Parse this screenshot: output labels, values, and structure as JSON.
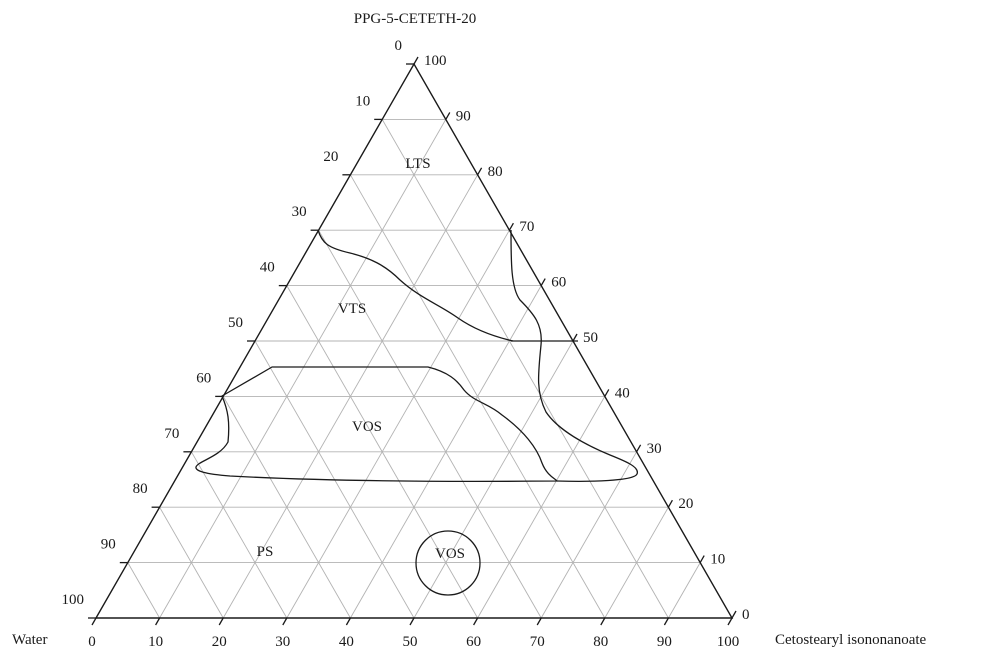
{
  "vertices": {
    "top": "PPG-5-CETETH-20",
    "left": "Water",
    "right": "Cetostearyl isononanoate"
  },
  "ticks": {
    "bottom": [
      "0",
      "10",
      "20",
      "30",
      "40",
      "50",
      "60",
      "70",
      "80",
      "90",
      "100"
    ],
    "left": [
      "0",
      "10",
      "20",
      "30",
      "40",
      "50",
      "60",
      "70",
      "80",
      "90",
      "100"
    ],
    "right": [
      "0",
      "10",
      "20",
      "30",
      "40",
      "50",
      "60",
      "70",
      "80",
      "90",
      "100"
    ]
  },
  "regions": {
    "lts": "LTS",
    "vts": "VTS",
    "vos_main": "VOS",
    "ps": "PS",
    "vos_small": "VOS"
  }
}
